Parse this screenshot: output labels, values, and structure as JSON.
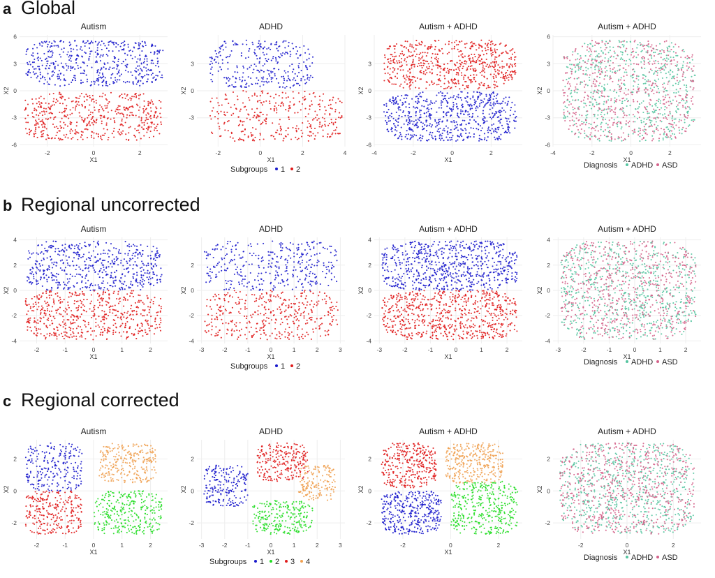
{
  "colors": {
    "subgroup_1": "#1a1acc",
    "subgroup_2": "#e01b1b",
    "subgroup_3": "#f0a050",
    "subgroup_4": "#22dd22",
    "adhd": "#55c4a0",
    "asd": "#d4628a",
    "grid": "#eeeeee",
    "text": "#222222"
  },
  "rows": [
    {
      "letter": "a",
      "title": "Global",
      "legend_title": "Subgroups",
      "legend_items": [
        {
          "label": "1",
          "color": "#1a1acc"
        },
        {
          "label": "2",
          "color": "#e01b1b"
        }
      ],
      "diagnosis_legend_title": "Diagnosis",
      "diagnosis_items": [
        {
          "label": "ADHD",
          "color": "#55c4a0"
        },
        {
          "label": "ASD",
          "color": "#d4628a"
        }
      ]
    },
    {
      "letter": "b",
      "title": "Regional uncorrected",
      "legend_title": "Subgroups",
      "legend_items": [
        {
          "label": "1",
          "color": "#1a1acc"
        },
        {
          "label": "2",
          "color": "#e01b1b"
        }
      ],
      "diagnosis_legend_title": "Diagnosis",
      "diagnosis_items": [
        {
          "label": "ADHD",
          "color": "#55c4a0"
        },
        {
          "label": "ASD",
          "color": "#d4628a"
        }
      ]
    },
    {
      "letter": "c",
      "title": "Regional corrected",
      "legend_title": "Subgroups",
      "legend_items": [
        {
          "label": "1",
          "color": "#1a1acc"
        },
        {
          "label": "2",
          "color": "#22dd22"
        },
        {
          "label": "3",
          "color": "#e01b1b"
        },
        {
          "label": "4",
          "color": "#f0a050"
        }
      ],
      "diagnosis_legend_title": "Diagnosis",
      "diagnosis_items": [
        {
          "label": "ADHD",
          "color": "#55c4a0"
        },
        {
          "label": "ASD",
          "color": "#d4628a"
        }
      ]
    }
  ],
  "chart_data": [
    {
      "row": "a",
      "type": "scatter",
      "title": "Autism",
      "xlabel": "X1",
      "ylabel": "X2",
      "xlim": [
        -3.2,
        3.2
      ],
      "ylim": [
        -6.2,
        6.2
      ],
      "xticks": [
        -2,
        0,
        2
      ],
      "yticks": [
        -6,
        -3,
        0,
        3,
        6
      ],
      "grid": true,
      "coloring": "subgroup",
      "clusters": [
        {
          "label": "1",
          "color": "#1a1acc",
          "x_range": [
            -3.0,
            3.0
          ],
          "y_range": [
            0.5,
            5.6
          ],
          "count": 520
        },
        {
          "label": "2",
          "color": "#e01b1b",
          "x_range": [
            -3.0,
            3.0
          ],
          "y_range": [
            -5.6,
            -0.2
          ],
          "count": 520
        }
      ]
    },
    {
      "row": "a",
      "type": "scatter",
      "title": "ADHD",
      "xlabel": "X1",
      "ylabel": "X2",
      "xlim": [
        -3.0,
        4.0
      ],
      "ylim": [
        -6.2,
        6.2
      ],
      "xticks": [
        -2,
        0,
        2,
        4
      ],
      "yticks": [
        -3,
        0,
        3
      ],
      "grid": true,
      "coloring": "subgroup",
      "clusters": [
        {
          "label": "1",
          "color": "#1a1acc",
          "x_range": [
            -2.4,
            2.5
          ],
          "y_range": [
            0.3,
            5.6
          ],
          "count": 300
        },
        {
          "label": "2",
          "color": "#e01b1b",
          "x_range": [
            -2.4,
            3.9
          ],
          "y_range": [
            -5.6,
            0.0
          ],
          "count": 340
        }
      ]
    },
    {
      "row": "a",
      "type": "scatter",
      "title": "Autism + ADHD",
      "xlabel": "X1",
      "ylabel": "X2",
      "xlim": [
        -4.0,
        3.6
      ],
      "ylim": [
        -6.2,
        6.2
      ],
      "xticks": [
        -4,
        -2,
        0,
        2
      ],
      "yticks": [
        -6,
        -3,
        0,
        3
      ],
      "grid": true,
      "coloring": "subgroup",
      "clusters": [
        {
          "label": "1",
          "color": "#e01b1b",
          "x_range": [
            -3.5,
            3.3
          ],
          "y_range": [
            0.2,
            5.6
          ],
          "count": 640
        },
        {
          "label": "2",
          "color": "#1a1acc",
          "x_range": [
            -3.5,
            3.3
          ],
          "y_range": [
            -5.6,
            -0.1
          ],
          "count": 640
        }
      ]
    },
    {
      "row": "a",
      "type": "scatter",
      "title": "Autism + ADHD",
      "xlabel": "X1",
      "ylabel": "X2",
      "xlim": [
        -4.0,
        3.6
      ],
      "ylim": [
        -6.2,
        6.2
      ],
      "xticks": [
        -4,
        -2,
        0,
        2
      ],
      "yticks": [
        -6,
        -3,
        0,
        3,
        6
      ],
      "grid": true,
      "coloring": "diagnosis",
      "clusters": [
        {
          "label": "ADHD",
          "color": "#55c4a0",
          "x_range": [
            -3.5,
            3.3
          ],
          "y_range": [
            -5.6,
            5.6
          ],
          "count": 600
        },
        {
          "label": "ASD",
          "color": "#d4628a",
          "x_range": [
            -3.5,
            3.3
          ],
          "y_range": [
            -5.6,
            5.6
          ],
          "count": 600
        }
      ]
    },
    {
      "row": "b",
      "type": "scatter",
      "title": "Autism",
      "xlabel": "X1",
      "ylabel": "X2",
      "xlim": [
        -2.6,
        2.6
      ],
      "ylim": [
        -4.2,
        4.2
      ],
      "xticks": [
        -2,
        -1,
        0,
        1,
        2
      ],
      "yticks": [
        -4,
        -2,
        0,
        2,
        4
      ],
      "grid": true,
      "coloring": "subgroup",
      "clusters": [
        {
          "label": "1",
          "color": "#1a1acc",
          "x_range": [
            -2.4,
            2.4
          ],
          "y_range": [
            0.0,
            3.9
          ],
          "count": 560
        },
        {
          "label": "2",
          "color": "#e01b1b",
          "x_range": [
            -2.4,
            2.4
          ],
          "y_range": [
            -3.9,
            0.0
          ],
          "count": 560
        }
      ]
    },
    {
      "row": "b",
      "type": "scatter",
      "title": "ADHD",
      "xlabel": "X1",
      "ylabel": "X2",
      "xlim": [
        -3.2,
        3.2
      ],
      "ylim": [
        -4.2,
        4.2
      ],
      "xticks": [
        -3,
        -2,
        -1,
        0,
        1,
        2,
        3
      ],
      "yticks": [
        -4,
        -2,
        0,
        2
      ],
      "grid": true,
      "coloring": "subgroup",
      "clusters": [
        {
          "label": "1",
          "color": "#1a1acc",
          "x_range": [
            -2.9,
            2.9
          ],
          "y_range": [
            0.0,
            3.9
          ],
          "count": 360
        },
        {
          "label": "2",
          "color": "#e01b1b",
          "x_range": [
            -2.9,
            2.9
          ],
          "y_range": [
            -3.9,
            0.0
          ],
          "count": 400
        }
      ]
    },
    {
      "row": "b",
      "type": "scatter",
      "title": "Autism + ADHD",
      "xlabel": "X1",
      "ylabel": "X2",
      "xlim": [
        -3.2,
        2.6
      ],
      "ylim": [
        -4.2,
        4.2
      ],
      "xticks": [
        -3,
        -2,
        -1,
        0,
        1,
        2
      ],
      "yticks": [
        -4,
        -2,
        0,
        2,
        4
      ],
      "grid": true,
      "coloring": "subgroup",
      "clusters": [
        {
          "label": "1",
          "color": "#1a1acc",
          "x_range": [
            -2.9,
            2.4
          ],
          "y_range": [
            0.0,
            3.9
          ],
          "count": 700
        },
        {
          "label": "2",
          "color": "#e01b1b",
          "x_range": [
            -2.9,
            2.4
          ],
          "y_range": [
            -3.9,
            0.0
          ],
          "count": 700
        }
      ]
    },
    {
      "row": "b",
      "type": "scatter",
      "title": "Autism + ADHD",
      "xlabel": "X1",
      "ylabel": "X2",
      "xlim": [
        -3.2,
        2.6
      ],
      "ylim": [
        -4.2,
        4.2
      ],
      "xticks": [
        -3,
        -2,
        -1,
        0,
        1,
        2
      ],
      "yticks": [
        -4,
        -2,
        0,
        2,
        4
      ],
      "grid": true,
      "coloring": "diagnosis",
      "clusters": [
        {
          "label": "ADHD",
          "color": "#55c4a0",
          "x_range": [
            -2.9,
            2.4
          ],
          "y_range": [
            -3.9,
            3.9
          ],
          "count": 650
        },
        {
          "label": "ASD",
          "color": "#d4628a",
          "x_range": [
            -2.9,
            2.4
          ],
          "y_range": [
            -3.9,
            3.9
          ],
          "count": 650
        }
      ]
    },
    {
      "row": "c",
      "type": "scatter",
      "title": "Autism",
      "xlabel": "X1",
      "ylabel": "X2",
      "xlim": [
        -2.6,
        2.6
      ],
      "ylim": [
        -3.0,
        3.2
      ],
      "xticks": [
        -2,
        -1,
        0,
        1,
        2
      ],
      "yticks": [
        -2,
        0,
        2
      ],
      "grid": true,
      "coloring": "subgroup",
      "clusters": [
        {
          "label": "1",
          "color": "#1a1acc",
          "x_range": [
            -2.4,
            -0.4
          ],
          "y_range": [
            0.0,
            3.0
          ],
          "count": 230
        },
        {
          "label": "2",
          "color": "#22dd22",
          "x_range": [
            0.0,
            2.4
          ],
          "y_range": [
            -2.7,
            0.0
          ],
          "count": 300
        },
        {
          "label": "3",
          "color": "#e01b1b",
          "x_range": [
            -2.4,
            -0.4
          ],
          "y_range": [
            -2.7,
            0.0
          ],
          "count": 260
        },
        {
          "label": "4",
          "color": "#f0a050",
          "x_range": [
            0.2,
            2.2
          ],
          "y_range": [
            0.5,
            3.0
          ],
          "count": 260
        }
      ]
    },
    {
      "row": "c",
      "type": "scatter",
      "title": "ADHD",
      "xlabel": "X1",
      "ylabel": "X2",
      "xlim": [
        -3.2,
        3.2
      ],
      "ylim": [
        -3.0,
        3.2
      ],
      "xticks": [
        -3,
        -2,
        -1,
        0,
        1,
        2,
        3
      ],
      "yticks": [
        -2,
        0,
        2
      ],
      "grid": true,
      "coloring": "subgroup",
      "clusters": [
        {
          "label": "1",
          "color": "#1a1acc",
          "x_range": [
            -2.9,
            -1.0
          ],
          "y_range": [
            -1.0,
            1.6
          ],
          "count": 200
        },
        {
          "label": "2",
          "color": "#22dd22",
          "x_range": [
            -0.8,
            1.8
          ],
          "y_range": [
            -2.7,
            -0.6
          ],
          "count": 240
        },
        {
          "label": "3",
          "color": "#e01b1b",
          "x_range": [
            -0.6,
            1.6
          ],
          "y_range": [
            0.6,
            3.0
          ],
          "count": 240
        },
        {
          "label": "4",
          "color": "#f0a050",
          "x_range": [
            1.2,
            2.8
          ],
          "y_range": [
            -0.6,
            1.6
          ],
          "count": 160
        }
      ]
    },
    {
      "row": "c",
      "type": "scatter",
      "title": "Autism + ADHD",
      "xlabel": "X1",
      "ylabel": "X2",
      "xlim": [
        -3.2,
        3.0
      ],
      "ylim": [
        -3.0,
        3.2
      ],
      "xticks": [
        -2,
        0,
        2
      ],
      "yticks": [
        -2,
        0,
        2
      ],
      "grid": true,
      "coloring": "subgroup",
      "clusters": [
        {
          "label": "1",
          "color": "#e01b1b",
          "x_range": [
            -2.9,
            -0.6
          ],
          "y_range": [
            0.2,
            3.0
          ],
          "count": 320
        },
        {
          "label": "2",
          "color": "#1a1acc",
          "x_range": [
            -2.9,
            -0.4
          ],
          "y_range": [
            -2.7,
            0.0
          ],
          "count": 360
        },
        {
          "label": "3",
          "color": "#f0a050",
          "x_range": [
            -0.2,
            2.2
          ],
          "y_range": [
            0.5,
            3.0
          ],
          "count": 320
        },
        {
          "label": "4",
          "color": "#22dd22",
          "x_range": [
            0.0,
            2.8
          ],
          "y_range": [
            -2.7,
            0.6
          ],
          "count": 380
        }
      ]
    },
    {
      "row": "c",
      "type": "scatter",
      "title": "Autism + ADHD",
      "xlabel": "X1",
      "ylabel": "X2",
      "xlim": [
        -3.2,
        3.2
      ],
      "ylim": [
        -3.0,
        3.2
      ],
      "xticks": [
        -2,
        0,
        2
      ],
      "yticks": [
        -2,
        0,
        2
      ],
      "grid": true,
      "coloring": "diagnosis",
      "clusters": [
        {
          "label": "ADHD",
          "color": "#55c4a0",
          "x_range": [
            -2.9,
            2.9
          ],
          "y_range": [
            -2.7,
            3.0
          ],
          "count": 650
        },
        {
          "label": "ASD",
          "color": "#d4628a",
          "x_range": [
            -2.9,
            2.9
          ],
          "y_range": [
            -2.7,
            3.0
          ],
          "count": 650
        }
      ]
    }
  ]
}
